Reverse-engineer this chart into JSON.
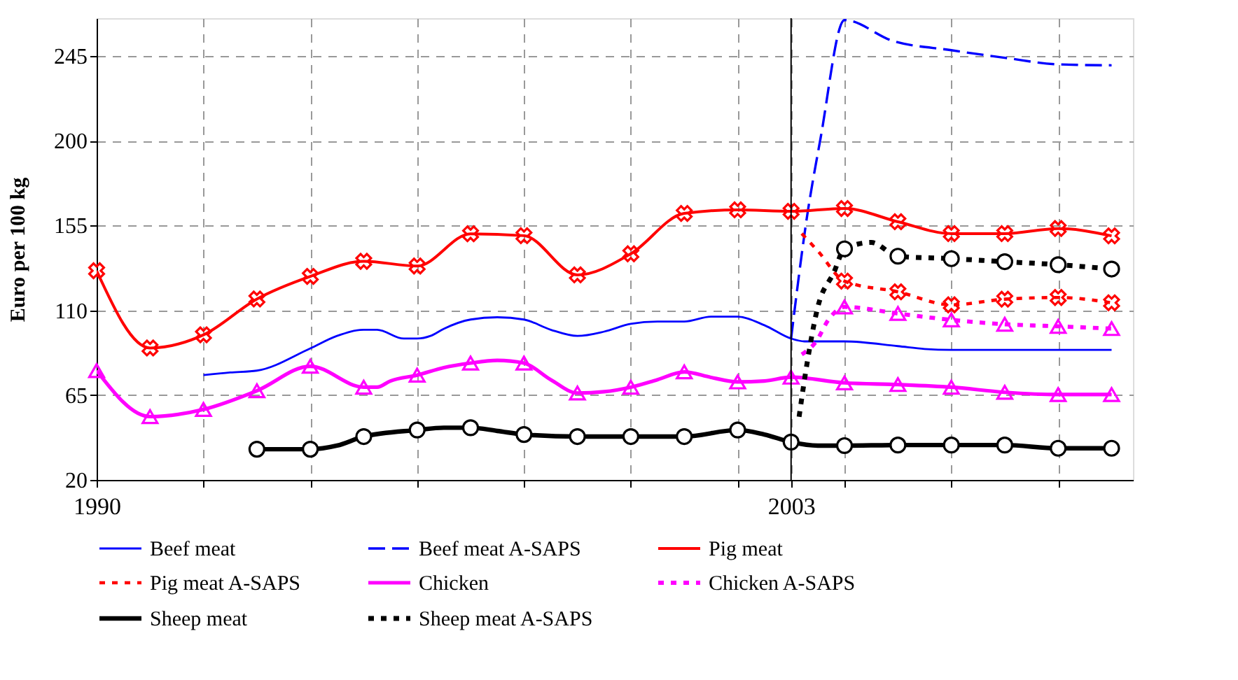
{
  "chart_data": {
    "type": "line",
    "ylabel": "Euro per 100 kg",
    "xlim": [
      1990,
      2009.4
    ],
    "ylim": [
      20,
      265
    ],
    "xticks": [
      1990,
      {
        "value": 1992,
        "label": null
      },
      {
        "value": 1994,
        "label": null
      },
      {
        "value": 1996,
        "label": null
      },
      {
        "value": 1998,
        "label": null
      },
      {
        "value": 2000,
        "label": null
      },
      {
        "value": 2002,
        "label": null
      },
      2003,
      {
        "value": 2004,
        "label": null
      },
      {
        "value": 2006,
        "label": null
      },
      {
        "value": 2008,
        "label": null
      }
    ],
    "yticks": [
      20,
      65,
      110,
      155,
      200,
      245
    ],
    "grid": true,
    "legend": "bottom",
    "ref_lines": [
      {
        "axis": "x",
        "value": 2003,
        "color": "#000000",
        "line_style": "solid"
      }
    ],
    "series": [
      {
        "name": "Beef meat",
        "color": "#0000ff",
        "marker": "none",
        "line_style": "solid",
        "x": [
          1992,
          1992.5,
          1993,
          1994,
          1994.5,
          1995,
          1995.25,
          1995.75,
          1996,
          1996.25,
          1996.5,
          1997,
          1997.5,
          1998,
          1998.5,
          1999,
          1999.5,
          2000,
          2000.5,
          2001,
          2001.5,
          2002,
          2002.5,
          2003,
          2003.25,
          2004,
          2005,
          2005.5,
          2006,
          2007,
          2008,
          2009
        ],
        "values": [
          75.6,
          77,
          78,
          89.8,
          96.4,
          99.7,
          99.7,
          95,
          95,
          96.4,
          100.2,
          105.1,
          106.3,
          105.1,
          99.7,
          96.4,
          98.7,
          102.8,
          104,
          104,
          106.6,
          106.6,
          102.1,
          95,
          93.5,
          93.5,
          91,
          89.5,
          89,
          89,
          89,
          89
        ]
      },
      {
        "name": "Beef meat A-SAPS",
        "color": "#0000ff",
        "marker": "none",
        "line_style": "dashed",
        "x": [
          2003,
          2003.3,
          2003.55,
          2004,
          2004.9,
          2006,
          2007,
          2008,
          2009
        ],
        "values": [
          95,
          160,
          201,
          264,
          253,
          248,
          244,
          240.5,
          240
        ]
      },
      {
        "name": "Pig meat",
        "color": "#ff0000",
        "marker": "cross",
        "line_style": "solid",
        "x": [
          1990,
          1991,
          1992,
          1993,
          1994,
          1995,
          1996,
          1997,
          1998,
          1999,
          2000,
          2001,
          2002,
          2003,
          2004,
          2005,
          2006,
          2007,
          2008,
          2009
        ],
        "values": [
          131,
          90,
          97,
          116,
          128,
          136,
          133.5,
          150.6,
          149.6,
          128.8,
          140,
          161.4,
          163.3,
          162.5,
          164,
          157,
          150.7,
          150.7,
          153.4,
          149.5
        ]
      },
      {
        "name": "Pig meat A-SAPS",
        "color": "#ff0000",
        "marker": "cross",
        "line_style": "dotted",
        "x": [
          2003.2,
          2003.5,
          2004,
          2005,
          2006,
          2007,
          2008,
          2009
        ],
        "values": [
          150.7,
          141.5,
          125.5,
          119.8,
          112.9,
          115.9,
          116.8,
          114
        ]
      },
      {
        "name": "Chicken",
        "color": "#ff00ff",
        "marker": "triangle",
        "line_style": "solid",
        "x": [
          1990,
          1991,
          1992,
          1993,
          1994,
          1995,
          1995.25,
          1995.5,
          1996,
          1996.5,
          1997,
          1997.5,
          1998,
          1998.5,
          1999,
          1999.5,
          2000,
          2000.5,
          2001,
          2001.5,
          2002,
          2002.5,
          2003,
          2004,
          2005,
          2006,
          2007,
          2008,
          2009
        ],
        "values": [
          78,
          53.6,
          57.4,
          67.3,
          80.3,
          69.2,
          69.2,
          72.5,
          75.6,
          79.6,
          82,
          83.4,
          82,
          73.2,
          66.1,
          66.8,
          69.2,
          73.2,
          77.3,
          74.4,
          72,
          72.5,
          74.5,
          71.5,
          70.6,
          69.2,
          66.5,
          65.3,
          65.3
        ]
      },
      {
        "name": "Chicken A-SAPS",
        "color": "#ff00ff",
        "marker": "triangle",
        "line_style": "dotted",
        "x": [
          2003.2,
          2003.47,
          2003.7,
          2004,
          2005,
          2006,
          2007,
          2008,
          2009
        ],
        "values": [
          86.6,
          93.5,
          105,
          111.8,
          108.3,
          104.9,
          102.6,
          101.5,
          100.3
        ]
      },
      {
        "name": "Sheep meat",
        "color": "#000000",
        "marker": "circle",
        "line_style": "solid",
        "x": [
          1993,
          1994,
          1994.5,
          1995,
          1996,
          1996.5,
          1997,
          1997.5,
          1998,
          1999,
          2000,
          2001,
          2002,
          2002.5,
          2003,
          2003.5,
          2004,
          2005,
          2006,
          2007,
          2008,
          2009
        ],
        "values": [
          36.3,
          36.3,
          38.2,
          43,
          46.5,
          47.7,
          47.7,
          46,
          44.1,
          43,
          43,
          43,
          46.5,
          44.1,
          40.1,
          38.2,
          38.2,
          38.5,
          38.5,
          38.5,
          36.8,
          36.8
        ]
      },
      {
        "name": "Sheep meat A-SAPS",
        "color": "#000000",
        "marker": "circle",
        "line_style": "dotted",
        "x": [
          2003.15,
          2003.3,
          2003.5,
          2003.8,
          2004,
          2004.5,
          2005,
          2006,
          2007,
          2008,
          2009
        ],
        "values": [
          53.5,
          82,
          111.7,
          130,
          142.6,
          146,
          138.7,
          137.4,
          135.8,
          134.2,
          131.9
        ]
      }
    ]
  }
}
